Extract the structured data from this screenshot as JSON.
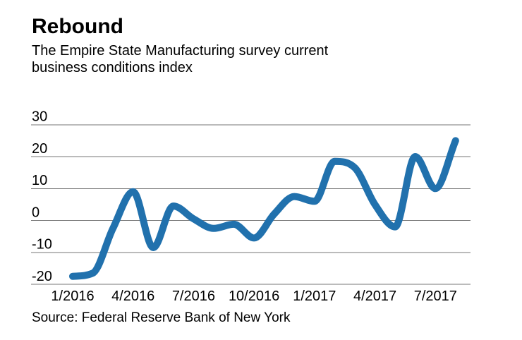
{
  "chart_data": {
    "type": "line",
    "title": "Rebound",
    "subtitle_line1": "The Empire State Manufacturing survey current",
    "subtitle_line2": "business conditions index",
    "subtitle": "The Empire State Manufacturing survey current business conditions index",
    "source": "Source: Federal Reserve Bank of New York",
    "x": [
      "1/2016",
      "2/2016",
      "3/2016",
      "4/2016",
      "5/2016",
      "6/2016",
      "7/2016",
      "8/2016",
      "9/2016",
      "10/2016",
      "11/2016",
      "12/2016",
      "1/2017",
      "2/2017",
      "3/2017",
      "4/2017",
      "5/2017",
      "6/2017",
      "7/2017",
      "8/2017"
    ],
    "values": [
      -17.5,
      -16.5,
      -2.5,
      9,
      -8.5,
      4.5,
      0.5,
      -2.5,
      -1.2,
      -5.5,
      2,
      7.5,
      6,
      18.5,
      16.5,
      5,
      -2,
      20,
      10,
      25
    ],
    "x_tick_labels": [
      "1/2016",
      "4/2016",
      "7/2016",
      "10/2016",
      "1/2017",
      "4/2017",
      "7/2017"
    ],
    "x_tick_month_indices": [
      0,
      3,
      6,
      9,
      12,
      15,
      18
    ],
    "y_tick_labels": [
      "30",
      "20",
      "10",
      "0",
      "-10",
      "-20"
    ],
    "y_ticks": [
      30,
      20,
      10,
      0,
      -10,
      -20
    ],
    "ylim": [
      -20,
      30
    ],
    "xlabel": "",
    "ylabel": "",
    "legend": "none",
    "grid": "horizontal-only",
    "line_color": "#2171ad",
    "grid_color": "#777777",
    "text_color": "#000000",
    "background_color": "#ffffff"
  }
}
